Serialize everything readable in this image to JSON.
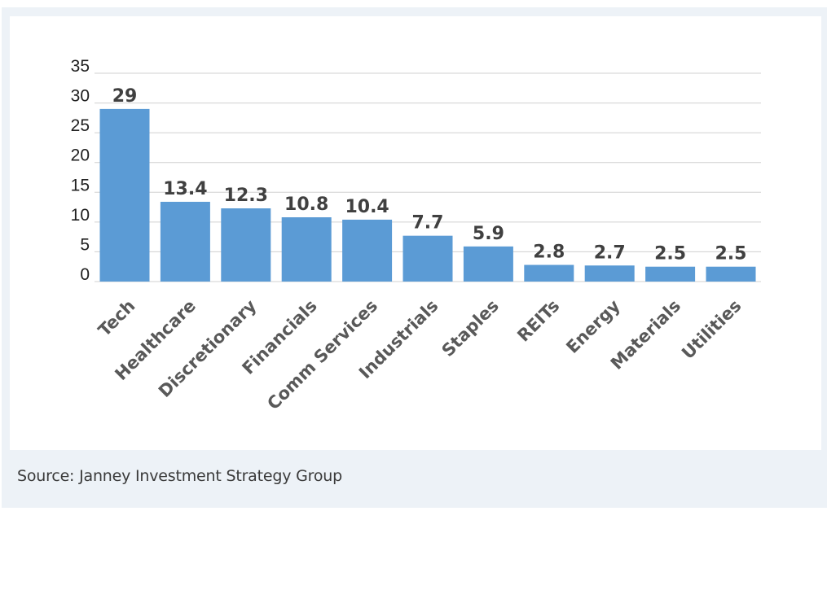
{
  "source": "Source: Janney Investment Strategy Group",
  "colors": {
    "bar": "#5b9bd5",
    "gridline": "#d0d0d0",
    "label": "#404040",
    "panel": "#edf2f7"
  },
  "chart_data": {
    "type": "bar",
    "title": "",
    "xlabel": "",
    "ylabel": "",
    "categories": [
      "Tech",
      "Healthcare",
      "Discretionary",
      "Financials",
      "Comm Services",
      "Industrials",
      "Staples",
      "REITs",
      "Energy",
      "Materials",
      "Utilities"
    ],
    "values": [
      29,
      13.4,
      12.3,
      10.8,
      10.4,
      7.7,
      5.9,
      2.8,
      2.7,
      2.5,
      2.5
    ],
    "data_labels": [
      "29",
      "13.4",
      "12.3",
      "10.8",
      "10.4",
      "7.7",
      "5.9",
      "2.8",
      "2.7",
      "2.5",
      "2.5"
    ],
    "ylim": [
      0,
      35
    ],
    "yticks": [
      "0",
      "5",
      "10",
      "15",
      "20",
      "25",
      "30",
      "35"
    ],
    "grid": true,
    "legend": "none"
  }
}
